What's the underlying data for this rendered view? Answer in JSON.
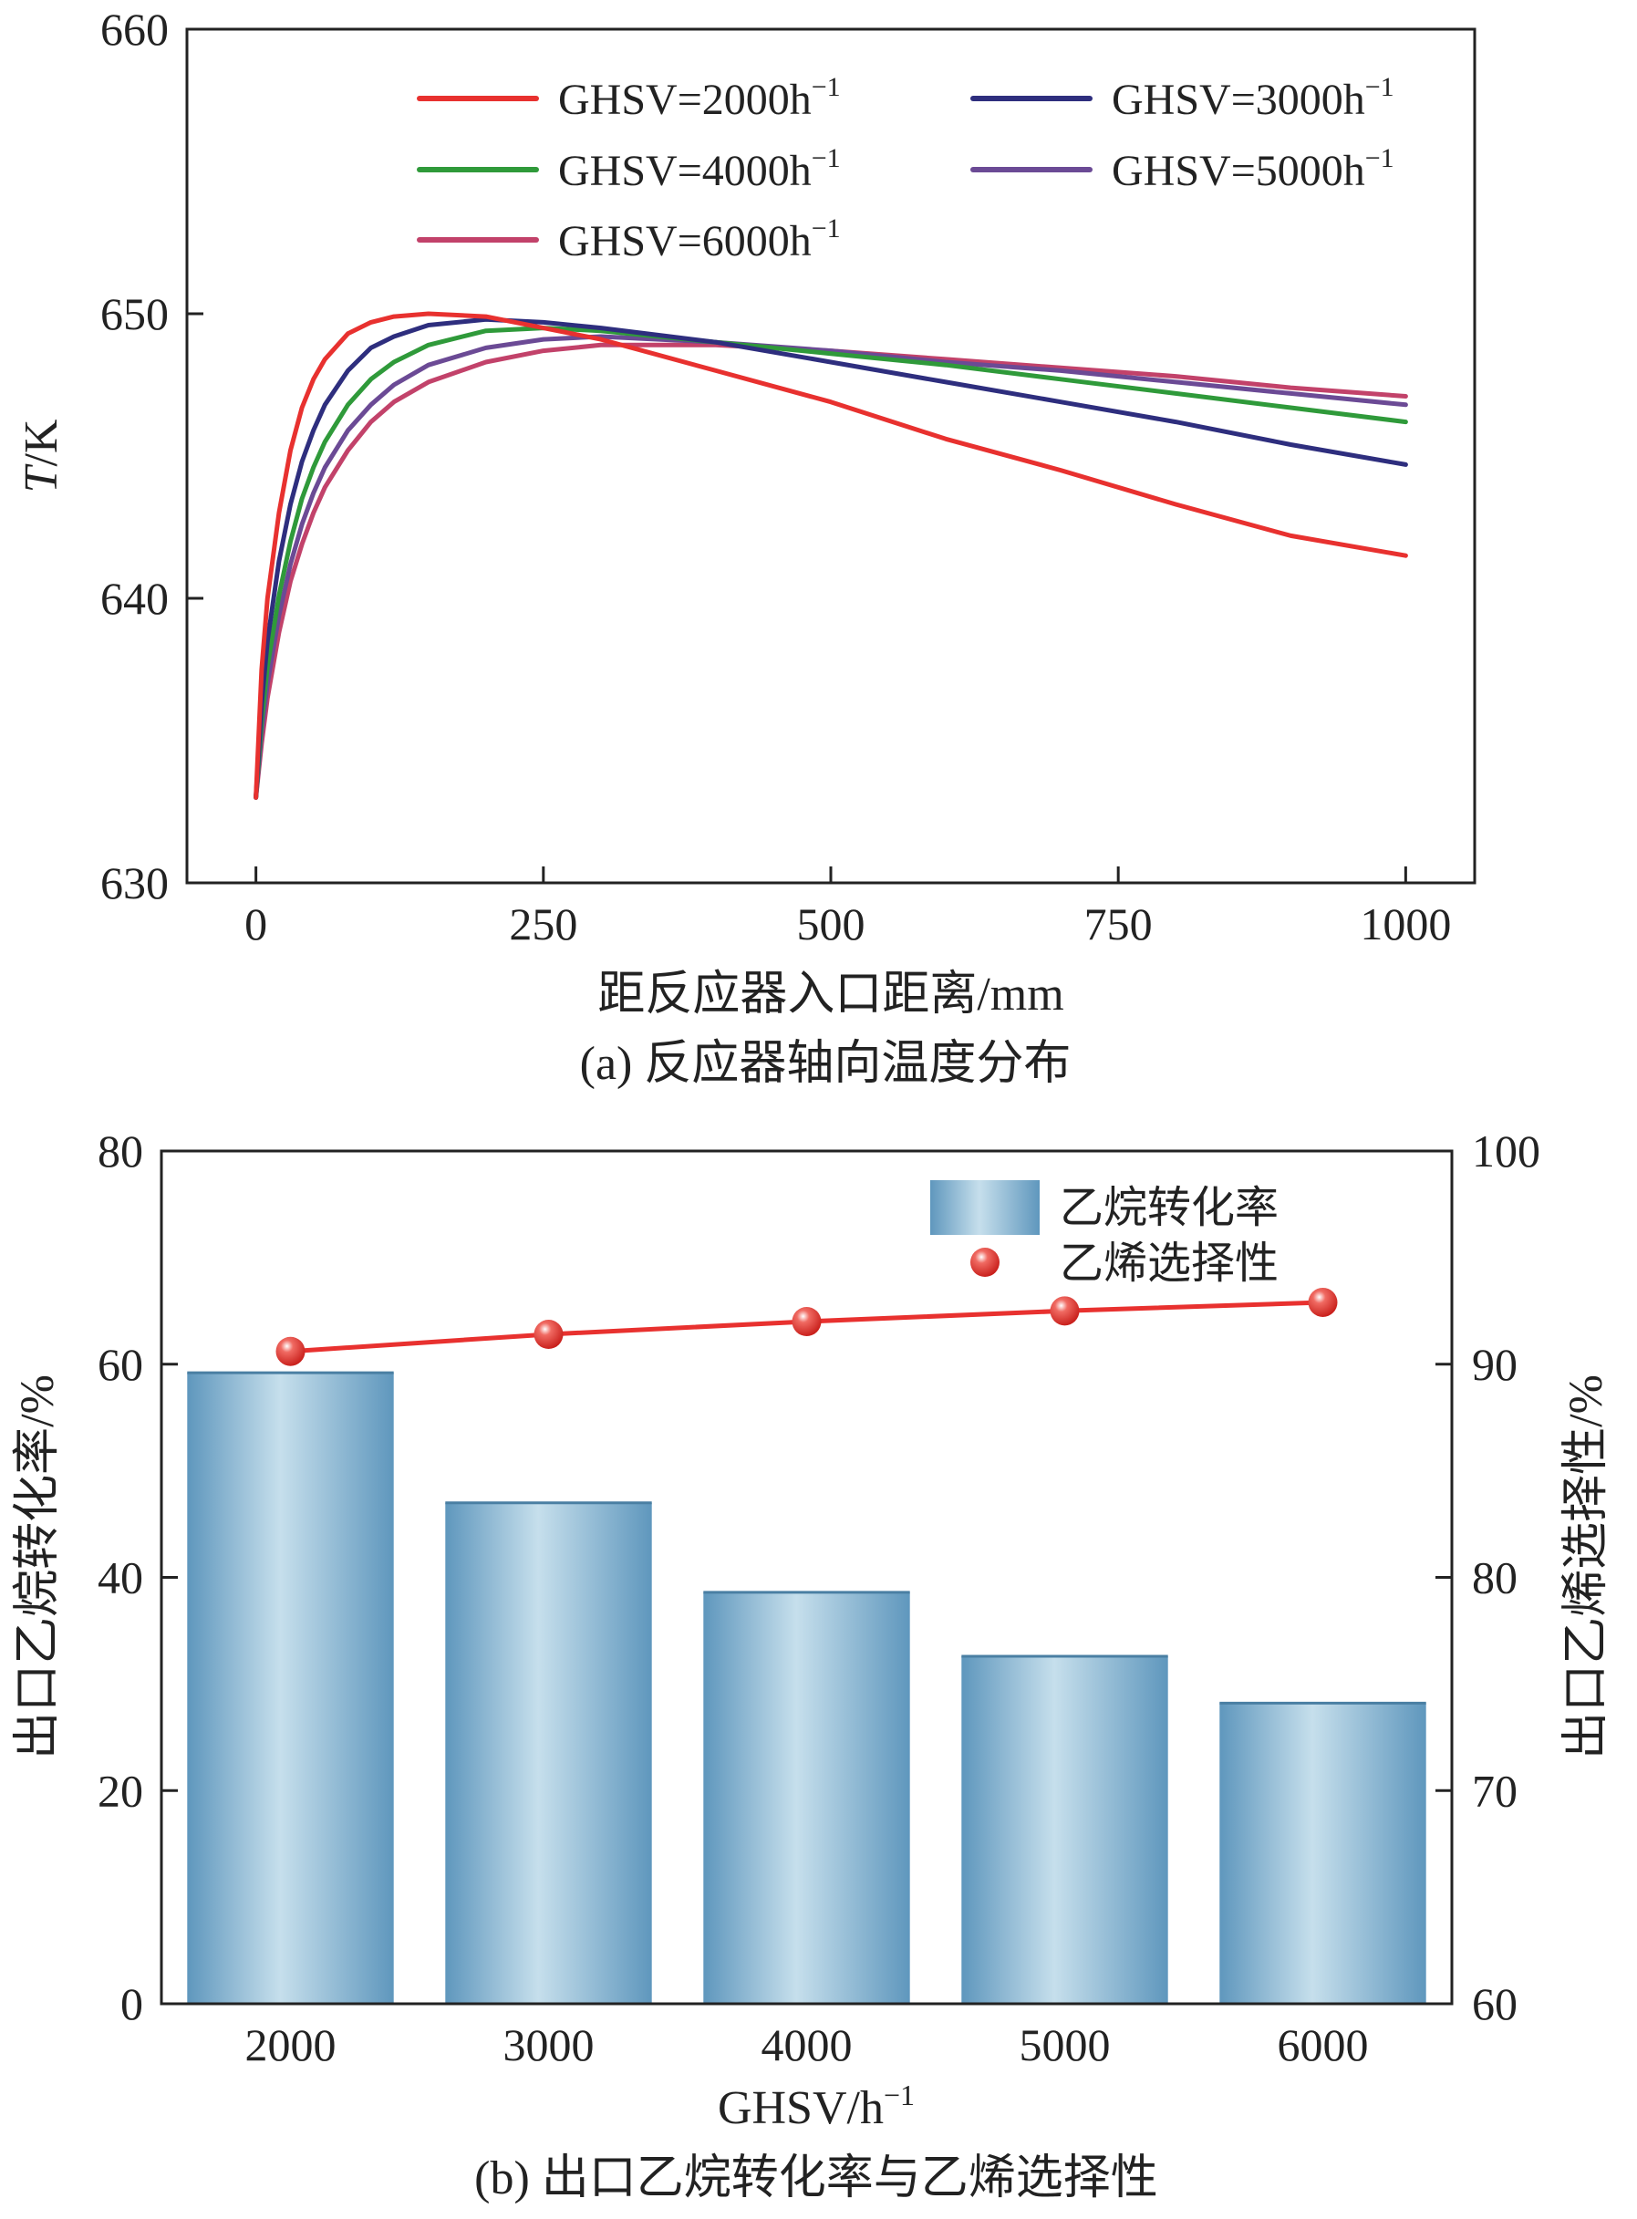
{
  "chart_data": [
    {
      "type": "line",
      "caption": "(a) 反应器轴向温度分布",
      "xlabel": "距反应器入口距离/mm",
      "ylabel_italic": "T",
      "ylabel_rest": "/K",
      "xlim": [
        -60,
        1060
      ],
      "ylim": [
        630,
        660
      ],
      "xticks": [
        0,
        250,
        500,
        750,
        1000
      ],
      "yticks": [
        630,
        640,
        650,
        660
      ],
      "grid": false,
      "legend_position": "top-right",
      "series": [
        {
          "name": "GHSV=2000h",
          "sup": "−1",
          "color": "#e8312f",
          "x": [
            0,
            5,
            10,
            20,
            30,
            40,
            50,
            60,
            80,
            100,
            120,
            150,
            200,
            250,
            300,
            400,
            500,
            600,
            700,
            800,
            900,
            1000
          ],
          "y": [
            633,
            637.5,
            640,
            643,
            645.2,
            646.7,
            647.7,
            648.4,
            649.3,
            649.7,
            649.9,
            650,
            649.9,
            649.5,
            649.1,
            648,
            646.9,
            645.6,
            644.5,
            643.3,
            642.2,
            641.5
          ]
        },
        {
          "name": "GHSV=3000h",
          "sup": "−1",
          "color": "#2e2e7e",
          "x": [
            0,
            5,
            10,
            20,
            30,
            40,
            50,
            60,
            80,
            100,
            120,
            150,
            200,
            250,
            300,
            400,
            500,
            600,
            700,
            800,
            900,
            1000
          ],
          "y": [
            633,
            636.3,
            638.5,
            641.3,
            643.3,
            644.8,
            645.9,
            646.8,
            648,
            648.8,
            649.2,
            649.6,
            649.8,
            649.7,
            649.5,
            649,
            648.3,
            647.6,
            646.9,
            646.2,
            645.4,
            644.7
          ]
        },
        {
          "name": "GHSV=4000h",
          "sup": "−1",
          "color": "#2f9a3a",
          "x": [
            0,
            5,
            10,
            20,
            30,
            40,
            50,
            60,
            80,
            100,
            120,
            150,
            200,
            250,
            300,
            400,
            500,
            600,
            700,
            800,
            900,
            1000
          ],
          "y": [
            633,
            635.7,
            637.6,
            640.1,
            642,
            643.5,
            644.6,
            645.5,
            646.8,
            647.7,
            648.3,
            648.9,
            649.4,
            649.5,
            649.4,
            649,
            648.6,
            648.2,
            647.7,
            647.2,
            646.7,
            646.2
          ]
        },
        {
          "name": "GHSV=5000h",
          "sup": "−1",
          "color": "#6b4a95",
          "x": [
            0,
            5,
            10,
            20,
            30,
            40,
            50,
            60,
            80,
            100,
            120,
            150,
            200,
            250,
            300,
            400,
            500,
            600,
            700,
            800,
            900,
            1000
          ],
          "y": [
            633,
            635.3,
            637,
            639.4,
            641.2,
            642.6,
            643.7,
            644.6,
            645.9,
            646.8,
            647.5,
            648.2,
            648.8,
            649.1,
            649.2,
            649,
            648.7,
            648.3,
            648,
            647.6,
            647.2,
            646.8
          ]
        },
        {
          "name": "GHSV=6000h",
          "sup": "−1",
          "color": "#c2426a",
          "x": [
            0,
            5,
            10,
            20,
            30,
            40,
            50,
            60,
            80,
            100,
            120,
            150,
            200,
            250,
            300,
            400,
            500,
            600,
            700,
            800,
            900,
            1000
          ],
          "y": [
            633,
            634.9,
            636.5,
            638.8,
            640.6,
            641.9,
            643,
            643.9,
            645.2,
            646.2,
            646.9,
            647.6,
            648.3,
            648.7,
            648.9,
            648.9,
            648.7,
            648.4,
            648.1,
            647.8,
            647.4,
            647.1
          ]
        }
      ]
    },
    {
      "type": "bar",
      "caption": "(b) 出口乙烷转化率与乙烯选择性",
      "xlabel": "GHSV/h",
      "xlabel_sup": "−1",
      "ylabel": "出口乙烷转化率/%",
      "ylabel_right": "出口乙烯选择性/%",
      "categories": [
        "2000",
        "3000",
        "4000",
        "5000",
        "6000"
      ],
      "ylim": [
        0,
        80
      ],
      "ylim_right": [
        60,
        100
      ],
      "yticks": [
        0,
        20,
        40,
        60,
        80
      ],
      "yticks_right": [
        60,
        70,
        80,
        90,
        100
      ],
      "grid": false,
      "legend_position": "top-right",
      "series": [
        {
          "name": "乙烷转化率",
          "axis": "left",
          "kind": "bar",
          "color": "#6fa3c4",
          "values": [
            59.2,
            47.0,
            38.6,
            32.6,
            28.2
          ]
        },
        {
          "name": "乙烯选择性",
          "axis": "right",
          "kind": "line-marker",
          "color": "#e8312f",
          "values": [
            90.6,
            91.4,
            92.0,
            92.5,
            92.9
          ]
        }
      ]
    }
  ]
}
